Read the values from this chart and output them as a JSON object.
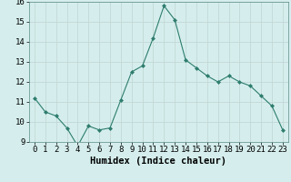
{
  "x": [
    0,
    1,
    2,
    3,
    4,
    5,
    6,
    7,
    8,
    9,
    10,
    11,
    12,
    13,
    14,
    15,
    16,
    17,
    18,
    19,
    20,
    21,
    22,
    23
  ],
  "y": [
    11.2,
    10.5,
    10.3,
    9.7,
    8.8,
    9.8,
    9.6,
    9.7,
    11.1,
    12.5,
    12.8,
    14.2,
    15.8,
    15.1,
    13.1,
    12.7,
    12.3,
    12.0,
    12.3,
    12.0,
    11.8,
    11.3,
    10.8,
    9.6
  ],
  "xlabel": "Humidex (Indice chaleur)",
  "xlim": [
    -0.5,
    23.5
  ],
  "ylim": [
    9,
    16
  ],
  "yticks": [
    9,
    10,
    11,
    12,
    13,
    14,
    15,
    16
  ],
  "xticks": [
    0,
    1,
    2,
    3,
    4,
    5,
    6,
    7,
    8,
    9,
    10,
    11,
    12,
    13,
    14,
    15,
    16,
    17,
    18,
    19,
    20,
    21,
    22,
    23
  ],
  "line_color": "#2e7d6e",
  "marker_color": "#2e7d6e",
  "bg_color": "#d5eeed",
  "grid_color": "#c2d8d6",
  "xlabel_fontsize": 7.5,
  "tick_fontsize": 6.5
}
